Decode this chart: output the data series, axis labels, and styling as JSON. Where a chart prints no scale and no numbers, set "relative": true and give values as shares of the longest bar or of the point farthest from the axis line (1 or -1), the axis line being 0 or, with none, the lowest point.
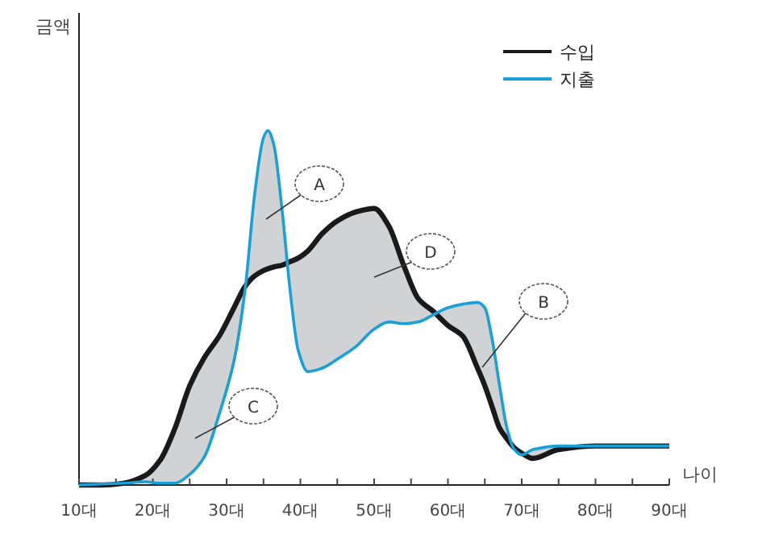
{
  "chart_data": {
    "type": "line",
    "relative": true,
    "xlabel": "나이",
    "legend": "top right",
    "xlim": [
      10,
      90
    ],
    "xticks": [
      {
        "value": 10,
        "label": "10대"
      },
      {
        "value": 15,
        "label": null
      },
      {
        "value": 20,
        "label": "20대"
      },
      {
        "value": 25,
        "label": null
      },
      {
        "value": 30,
        "label": "30대"
      },
      {
        "value": 35,
        "label": null
      },
      {
        "value": 40,
        "label": "40대"
      },
      {
        "value": 45,
        "label": null
      },
      {
        "value": 50,
        "label": "50대"
      },
      {
        "value": 55,
        "label": null
      },
      {
        "value": 60,
        "label": "60대"
      },
      {
        "value": 65,
        "label": null
      },
      {
        "value": 70,
        "label": "70대"
      },
      {
        "value": 75,
        "label": null
      },
      {
        "value": 80,
        "label": "80대"
      },
      {
        "value": 85,
        "label": null
      },
      {
        "value": 90,
        "label": "90대"
      }
    ],
    "x": [
      10,
      13,
      16,
      19,
      21,
      23,
      25,
      27,
      29,
      31,
      32.5,
      33.8,
      35,
      35.6,
      36.4,
      37.5,
      38.6,
      39.7,
      41,
      43,
      45,
      47.5,
      50,
      52,
      54,
      56,
      58,
      60,
      62,
      64,
      65,
      66,
      67,
      68,
      69,
      70,
      71.5,
      75,
      80,
      90
    ],
    "series": [
      {
        "name": "수입",
        "color": "#1a1a1a",
        "values": [
          0,
          0,
          0.005,
          0.027,
          0.07,
          0.16,
          0.28,
          0.36,
          0.42,
          0.5,
          0.56,
          0.59,
          0.605,
          0.61,
          0.615,
          0.62,
          0.63,
          0.64,
          0.66,
          0.71,
          0.745,
          0.77,
          0.78,
          0.73,
          0.62,
          0.525,
          0.49,
          0.45,
          0.42,
          0.33,
          0.28,
          0.22,
          0.16,
          0.13,
          0.105,
          0.09,
          0.075,
          0.1,
          0.11,
          0.11
        ]
      },
      {
        "name": "지출",
        "color": "#1aa0d8",
        "values": [
          0,
          0.003,
          0.005,
          0.009,
          0.005,
          0.005,
          0.03,
          0.08,
          0.2,
          0.35,
          0.55,
          0.82,
          0.98,
          1.0,
          0.96,
          0.78,
          0.55,
          0.38,
          0.32,
          0.33,
          0.355,
          0.39,
          0.44,
          0.46,
          0.455,
          0.46,
          0.48,
          0.5,
          0.51,
          0.515,
          0.5,
          0.41,
          0.28,
          0.16,
          0.1,
          0.085,
          0.1,
          0.11,
          0.11,
          0.11
        ],
        "lower": [
          0,
          0.003,
          0.005,
          0.009,
          0.005,
          0.005,
          0.03,
          0.08,
          0.2,
          0.35,
          0.55,
          0.82,
          0.98,
          1.0,
          0.96,
          0.78,
          0.55,
          0.38,
          0.32,
          0.33,
          0.355,
          0.39,
          0.44,
          0.46,
          0.455,
          0.46,
          0.48,
          0.5,
          0.51,
          0.515,
          0.5,
          0.41,
          0.28,
          0.16,
          0.1,
          0.085,
          0.1,
          0.11,
          0.11,
          0.11
        ],
        "upper": [
          0,
          0,
          0.005,
          0.027,
          0.07,
          0.16,
          0.28,
          0.36,
          0.42,
          0.5,
          0.56,
          0.59,
          0.605,
          0.61,
          0.615,
          0.62,
          0.63,
          0.64,
          0.66,
          0.71,
          0.745,
          0.77,
          0.78,
          0.73,
          0.62,
          0.525,
          0.49,
          0.45,
          0.42,
          0.33,
          0.28,
          0.22,
          0.16,
          0.13,
          0.105,
          0.09,
          0.075,
          0.1,
          0.11,
          0.11
        ]
      }
    ],
    "annotations": [
      "A",
      "D",
      "B",
      "C",
      "금액"
    ]
  }
}
